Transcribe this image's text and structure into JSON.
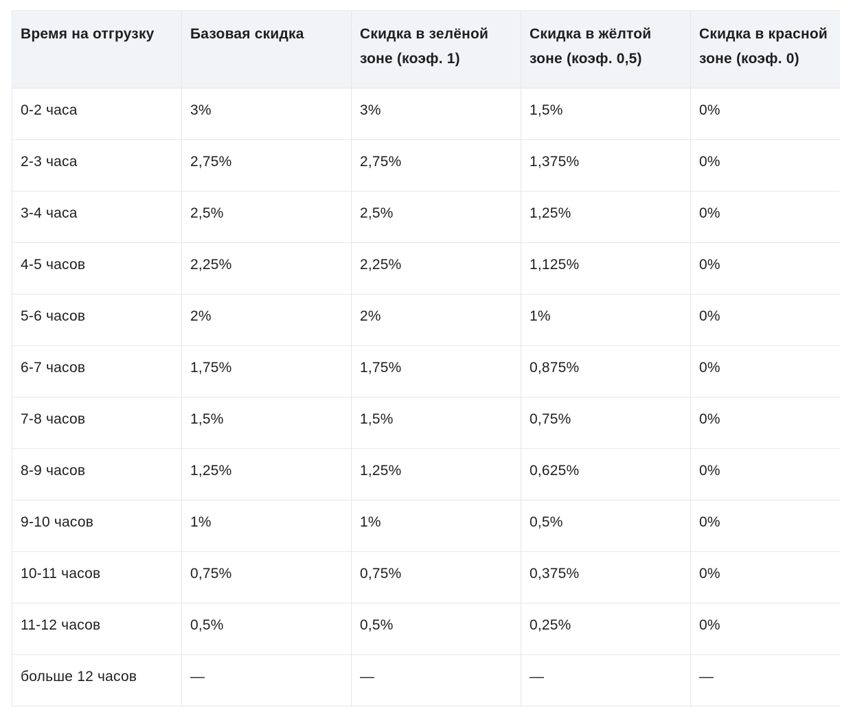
{
  "table": {
    "headers": [
      [
        "Время на отгрузку"
      ],
      [
        "Базовая скидка"
      ],
      [
        "Скидка в зелёной",
        "зоне (коэф. 1)"
      ],
      [
        "Скидка в жёлтой",
        "зоне (коэф. 0,5)"
      ],
      [
        "Скидка в красной",
        "зоне (коэф. 0)"
      ]
    ],
    "rows": [
      [
        "0-2 часа",
        "3%",
        "3%",
        "1,5%",
        "0%"
      ],
      [
        "2-3 часа",
        "2,75%",
        "2,75%",
        "1,375%",
        "0%"
      ],
      [
        "3-4 часа",
        "2,5%",
        "2,5%",
        "1,25%",
        "0%"
      ],
      [
        "4-5 часов",
        "2,25%",
        "2,25%",
        "1,125%",
        "0%"
      ],
      [
        "5-6 часов",
        "2%",
        "2%",
        "1%",
        "0%"
      ],
      [
        "6-7 часов",
        "1,75%",
        "1,75%",
        "0,875%",
        "0%"
      ],
      [
        "7-8 часов",
        "1,5%",
        "1,5%",
        "0,75%",
        "0%"
      ],
      [
        "8-9 часов",
        "1,25%",
        "1,25%",
        "0,625%",
        "0%"
      ],
      [
        "9-10 часов",
        "1%",
        "1%",
        "0,5%",
        "0%"
      ],
      [
        "10-11 часов",
        "0,75%",
        "0,75%",
        "0,375%",
        "0%"
      ],
      [
        "11-12 часов",
        "0,5%",
        "0,5%",
        "0,25%",
        "0%"
      ],
      [
        "больше 12 часов",
        "—",
        "—",
        "—",
        "—"
      ]
    ]
  },
  "colors": {
    "header_bg": "#f1f3f7",
    "border": "#e6e7ea",
    "text": "#1f1f1f"
  }
}
